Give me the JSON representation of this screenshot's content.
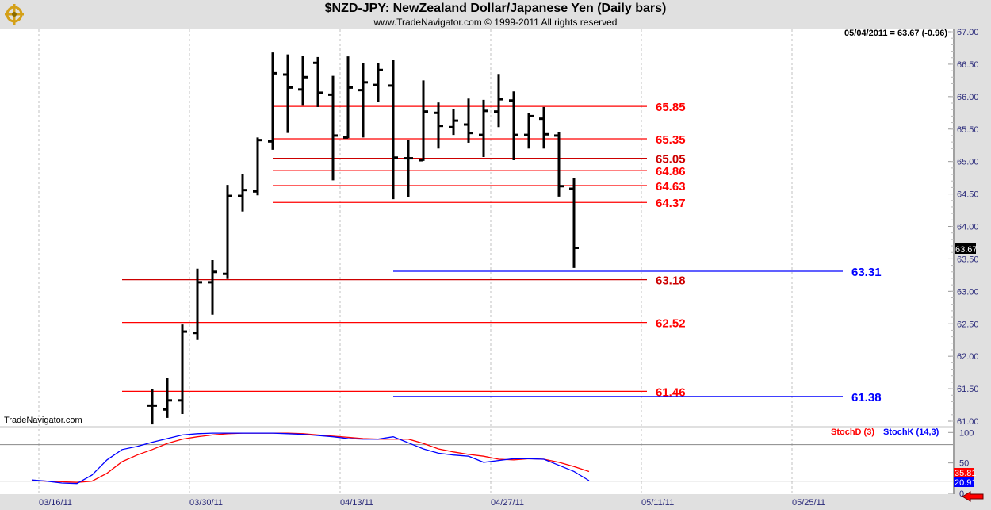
{
  "header": {
    "title": "$NZD-JPY:  NewZealand Dollar/Japanese Yen  (Daily bars)",
    "subtitle": "www.TradeNavigator.com © 1999-2011 All rights reserved",
    "last_quote": "05/04/2011 = 63.67 (-0.96)",
    "watermark": "TradeNavigator.com",
    "last_price_badge": "63.67"
  },
  "colors": {
    "bar": "#000000",
    "level_red": "#ff0000",
    "level_dark_red": "#cc0000",
    "level_blue": "#0000ff",
    "stoch_k": "#0000ff",
    "stoch_d": "#ff0000"
  },
  "chart_data": [
    {
      "type": "ohlc",
      "title": "$NZD-JPY Daily bars",
      "ylim": [
        61.0,
        67.0
      ],
      "y_ticks": [
        "61.00",
        "61.50",
        "62.00",
        "62.50",
        "63.00",
        "63.50",
        "64.00",
        "64.50",
        "65.00",
        "65.50",
        "66.00",
        "66.50",
        "67.00"
      ],
      "x_tick_labels": [
        "03/16/11",
        "03/30/11",
        "04/13/11",
        "04/27/11",
        "05/11/11",
        "05/25/11"
      ],
      "bars": [
        [
          61.24,
          61.5,
          60.95,
          61.24
        ],
        [
          61.18,
          61.67,
          61.05,
          61.32
        ],
        [
          61.32,
          62.49,
          61.11,
          62.38
        ],
        [
          62.36,
          63.35,
          62.25,
          63.14
        ],
        [
          63.14,
          63.48,
          62.64,
          63.3
        ],
        [
          63.27,
          64.64,
          63.19,
          64.47
        ],
        [
          64.47,
          64.81,
          64.23,
          64.56
        ],
        [
          64.54,
          65.37,
          64.48,
          65.33
        ],
        [
          65.31,
          66.68,
          65.18,
          66.36
        ],
        [
          66.34,
          66.65,
          65.44,
          66.14
        ],
        [
          66.11,
          66.63,
          65.86,
          66.3
        ],
        [
          66.52,
          66.61,
          65.84,
          66.06
        ],
        [
          66.03,
          66.32,
          64.71,
          65.4
        ],
        [
          65.37,
          66.62,
          65.36,
          66.14
        ],
        [
          66.1,
          66.52,
          65.37,
          66.22
        ],
        [
          66.18,
          66.52,
          65.92,
          66.41
        ],
        [
          66.17,
          66.56,
          64.42,
          65.06
        ],
        [
          65.05,
          65.33,
          64.45,
          65.05
        ],
        [
          65.02,
          66.25,
          65.01,
          65.77
        ],
        [
          65.75,
          65.91,
          65.2,
          65.55
        ],
        [
          65.53,
          65.81,
          65.41,
          65.63
        ],
        [
          65.57,
          65.97,
          65.29,
          65.44
        ],
        [
          65.41,
          65.95,
          65.07,
          65.78
        ],
        [
          65.77,
          66.35,
          65.53,
          65.96
        ],
        [
          65.94,
          66.08,
          65.02,
          65.41
        ],
        [
          65.41,
          65.75,
          65.2,
          65.7
        ],
        [
          65.66,
          65.84,
          65.2,
          65.42
        ],
        [
          65.4,
          65.45,
          64.46,
          64.62
        ],
        [
          64.58,
          64.75,
          63.36,
          63.67
        ]
      ],
      "levels": [
        {
          "value": 65.85,
          "label": "65.85",
          "color": "red",
          "from_bar": 8,
          "to_bar": 33
        },
        {
          "value": 65.35,
          "label": "65.35",
          "color": "red",
          "from_bar": 8,
          "to_bar": 33
        },
        {
          "value": 65.05,
          "label": "65.05",
          "color": "dark_red",
          "from_bar": 8,
          "to_bar": 33
        },
        {
          "value": 64.86,
          "label": "64.86",
          "color": "red",
          "from_bar": 8,
          "to_bar": 33
        },
        {
          "value": 64.63,
          "label": "64.63",
          "color": "red",
          "from_bar": 8,
          "to_bar": 33
        },
        {
          "value": 64.37,
          "label": "64.37",
          "color": "red",
          "from_bar": 8,
          "to_bar": 33
        },
        {
          "value": 63.18,
          "label": "63.18",
          "color": "dark_red",
          "from_bar": -2,
          "to_bar": 33
        },
        {
          "value": 62.52,
          "label": "62.52",
          "color": "red",
          "from_bar": -2,
          "to_bar": 33
        },
        {
          "value": 61.46,
          "label": "61.46",
          "color": "red",
          "from_bar": -2,
          "to_bar": 33
        },
        {
          "value": 63.31,
          "label": "63.31",
          "color": "blue",
          "from_bar": 16,
          "to_bar": 46
        },
        {
          "value": 61.38,
          "label": "61.38",
          "color": "blue",
          "from_bar": 16,
          "to_bar": 46
        }
      ]
    },
    {
      "type": "line",
      "title": "Stochastic",
      "ylim": [
        0,
        100
      ],
      "y_ticks": [
        "0",
        "50",
        "100"
      ],
      "reference_lines": [
        20,
        80
      ],
      "start_bar": -8,
      "series": [
        {
          "name": "StochD (3)",
          "color": "d",
          "last_label": "35.81",
          "values": [
            21,
            20,
            19,
            18,
            20,
            33,
            52,
            63,
            72,
            82,
            89,
            93,
            96,
            98,
            99,
            99,
            99,
            99,
            98,
            96,
            94,
            92,
            90,
            89,
            89,
            89,
            82,
            73,
            68,
            64,
            61,
            56,
            55,
            57,
            56,
            51,
            44,
            35.81
          ]
        },
        {
          "name": "StochK (14,3)",
          "color": "k",
          "last_label": "20.91",
          "values": [
            22,
            20,
            17,
            16,
            30,
            55,
            72,
            77,
            84,
            90,
            96,
            98,
            99,
            99,
            99,
            99,
            99,
            98,
            97,
            95,
            93,
            90,
            89,
            89,
            93,
            83,
            73,
            66,
            63,
            61,
            51,
            54,
            57,
            57,
            56,
            46,
            36,
            20.91
          ]
        }
      ]
    }
  ]
}
